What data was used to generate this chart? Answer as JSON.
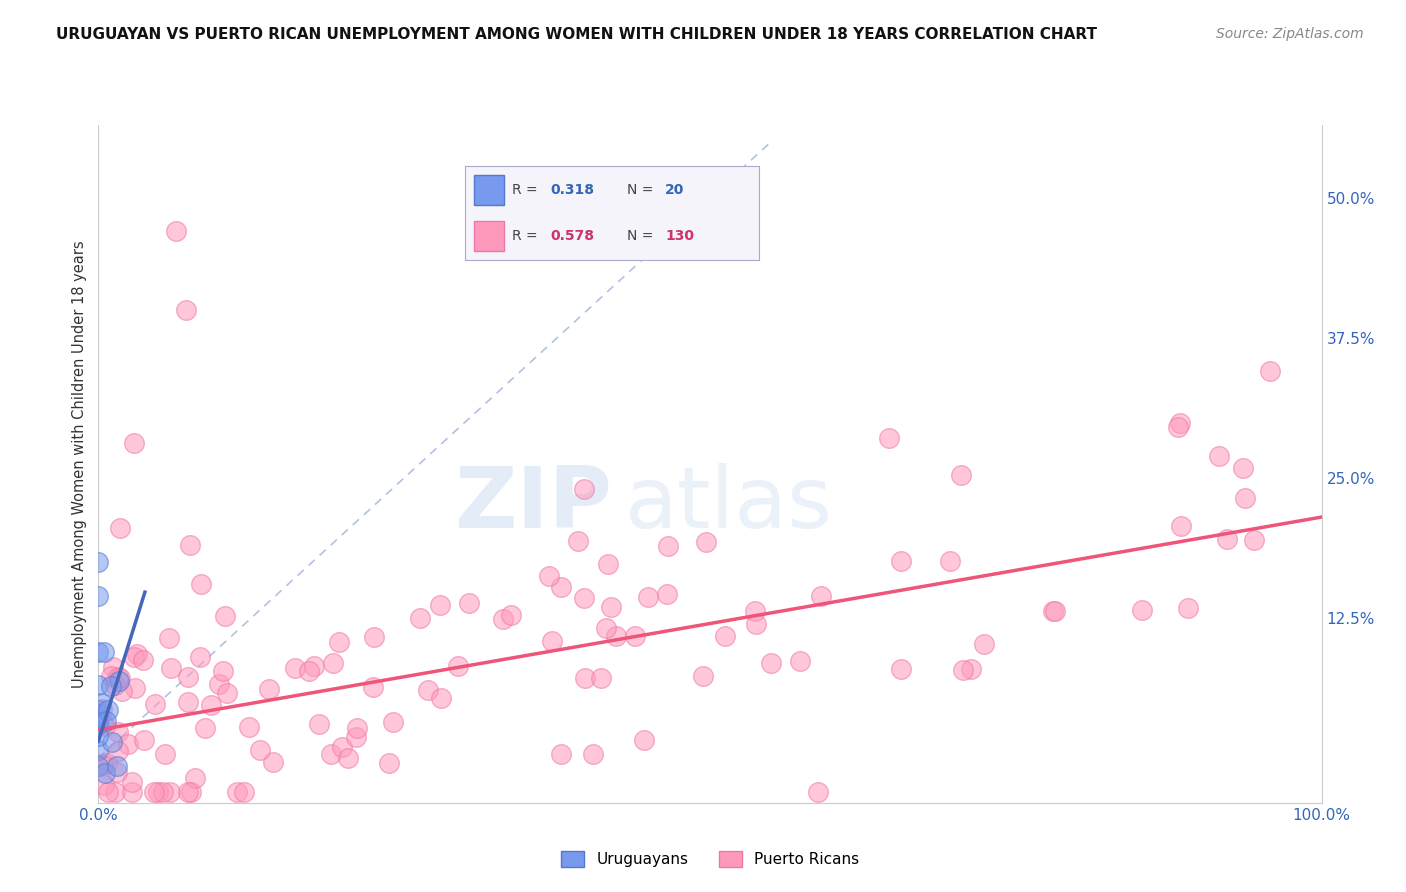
{
  "title": "URUGUAYAN VS PUERTO RICAN UNEMPLOYMENT AMONG WOMEN WITH CHILDREN UNDER 18 YEARS CORRELATION CHART",
  "source": "Source: ZipAtlas.com",
  "ylabel": "Unemployment Among Women with Children Under 18 years",
  "xlim": [
    0.0,
    1.0
  ],
  "ylim": [
    -0.04,
    0.565
  ],
  "ytick_positions": [
    0.0,
    0.125,
    0.25,
    0.375,
    0.5
  ],
  "ytick_labels": [
    "",
    "12.5%",
    "25.0%",
    "37.5%",
    "50.0%"
  ],
  "uruguayan_color": "#7799ee",
  "puerto_rican_color": "#ff99bb",
  "uruguayan_border_color": "#5577cc",
  "puerto_rican_border_color": "#ee77aa",
  "uruguayan_R": "0.318",
  "uruguayan_N": "20",
  "puerto_rican_R": "0.578",
  "puerto_rican_N": "130",
  "watermark_zip": "ZIP",
  "watermark_atlas": "atlas",
  "background_color": "#ffffff",
  "grid_color": "#cccccc",
  "reg_line_pr_color": "#ee5577",
  "reg_line_uru_color": "#4466bb",
  "diag_color": "#aabbdd",
  "title_fontsize": 11,
  "source_fontsize": 10
}
